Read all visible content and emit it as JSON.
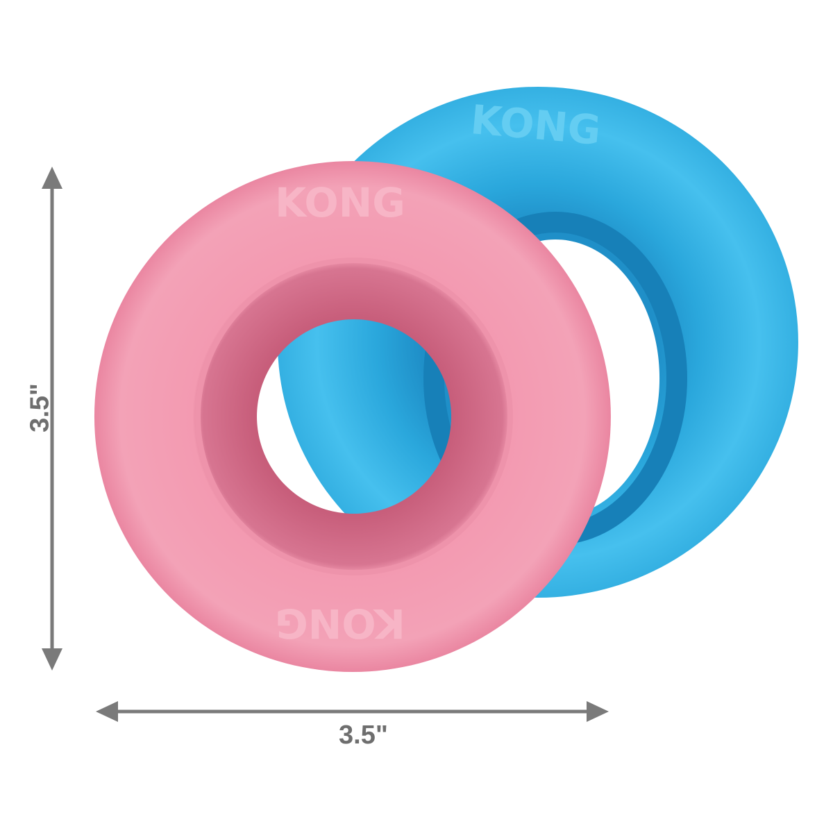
{
  "product": {
    "brand_logo_text": "KONG",
    "colors": {
      "pink": "#ef8fa8",
      "pink_dark": "#d06a84",
      "blue": "#35b6e6",
      "blue_dark": "#1d8fc6",
      "dimension_gray": "#7a7a7a"
    }
  },
  "dimensions": {
    "height_label": "3.5\"",
    "width_label": "3.5\""
  },
  "icons": [
    "vertical-double-arrow",
    "horizontal-double-arrow"
  ]
}
